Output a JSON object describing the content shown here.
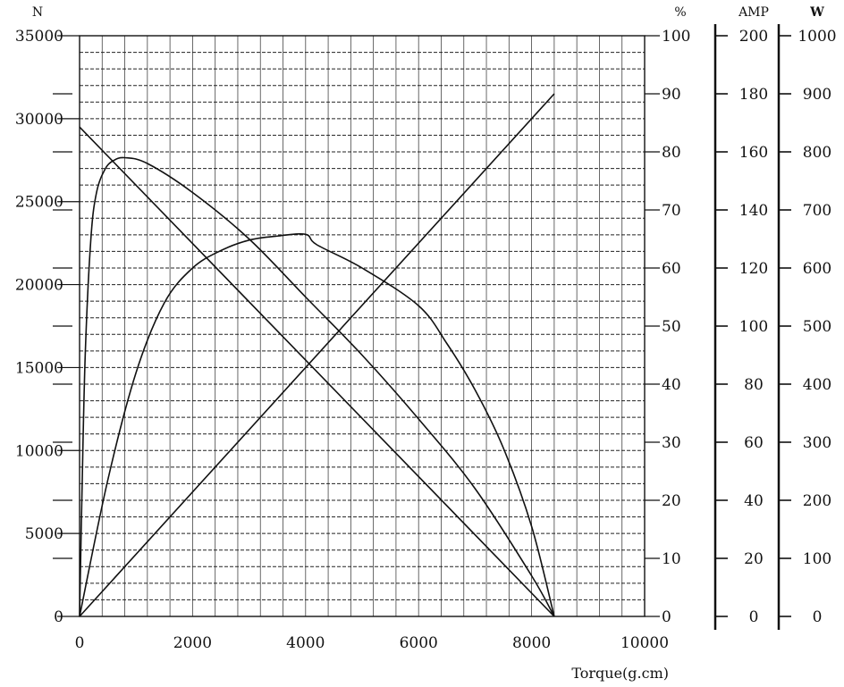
{
  "chart_data": {
    "type": "line",
    "xlabel": "Torque(g.cm)",
    "x_ticks": [
      "0",
      "2000",
      "4000",
      "6000",
      "8000",
      "10000"
    ],
    "xlim": [
      0,
      10000
    ],
    "grid": true,
    "axes": [
      {
        "id": "N",
        "unit": "N",
        "side": "left",
        "range": [
          0,
          35000
        ],
        "ticks": [
          "0",
          "5000",
          "10000",
          "15000",
          "20000",
          "25000",
          "30000",
          "35000"
        ]
      },
      {
        "id": "pct",
        "unit": "%",
        "side": "right",
        "range": [
          0,
          100
        ],
        "ticks": [
          "0",
          "10",
          "20",
          "30",
          "40",
          "50",
          "60",
          "70",
          "80",
          "90",
          "100"
        ]
      },
      {
        "id": "amp",
        "unit": "AMP",
        "side": "right-2",
        "range": [
          0,
          200
        ],
        "ticks": [
          "0",
          "20",
          "40",
          "60",
          "80",
          "100",
          "120",
          "140",
          "160",
          "180",
          "200"
        ]
      },
      {
        "id": "W",
        "unit": "W",
        "side": "right-3",
        "range": [
          0,
          1000
        ],
        "ticks": [
          "0",
          "100",
          "200",
          "300",
          "400",
          "500",
          "600",
          "700",
          "800",
          "900",
          "1000"
        ]
      }
    ],
    "series": [
      {
        "axis": "N",
        "shape": "line",
        "points": [
          [
            0,
            29500
          ],
          [
            8400,
            0
          ]
        ]
      },
      {
        "axis": "amp",
        "shape": "line",
        "points": [
          [
            0,
            0
          ],
          [
            8400,
            180
          ]
        ]
      },
      {
        "axis": "pct",
        "shape": "curve",
        "points": [
          [
            0,
            0
          ],
          [
            40,
            20
          ],
          [
            100,
            45
          ],
          [
            200,
            65
          ],
          [
            300,
            73
          ],
          [
            450,
            77
          ],
          [
            600,
            78.5
          ],
          [
            800,
            79
          ],
          [
            1200,
            78
          ],
          [
            2000,
            73
          ],
          [
            3000,
            65
          ],
          [
            4000,
            55
          ],
          [
            5000,
            45
          ],
          [
            6000,
            34
          ],
          [
            7000,
            22
          ],
          [
            8000,
            7
          ],
          [
            8400,
            0
          ]
        ]
      },
      {
        "axis": "W",
        "shape": "curve",
        "points": [
          [
            0,
            0
          ],
          [
            500,
            235
          ],
          [
            1000,
            420
          ],
          [
            1500,
            540
          ],
          [
            2000,
            600
          ],
          [
            2500,
            630
          ],
          [
            3000,
            648
          ],
          [
            3500,
            655
          ],
          [
            4000,
            658
          ],
          [
            4200,
            640
          ],
          [
            5000,
            600
          ],
          [
            6000,
            535
          ],
          [
            6500,
            470
          ],
          [
            7000,
            390
          ],
          [
            7500,
            290
          ],
          [
            8000,
            155
          ],
          [
            8400,
            0
          ]
        ]
      }
    ]
  }
}
